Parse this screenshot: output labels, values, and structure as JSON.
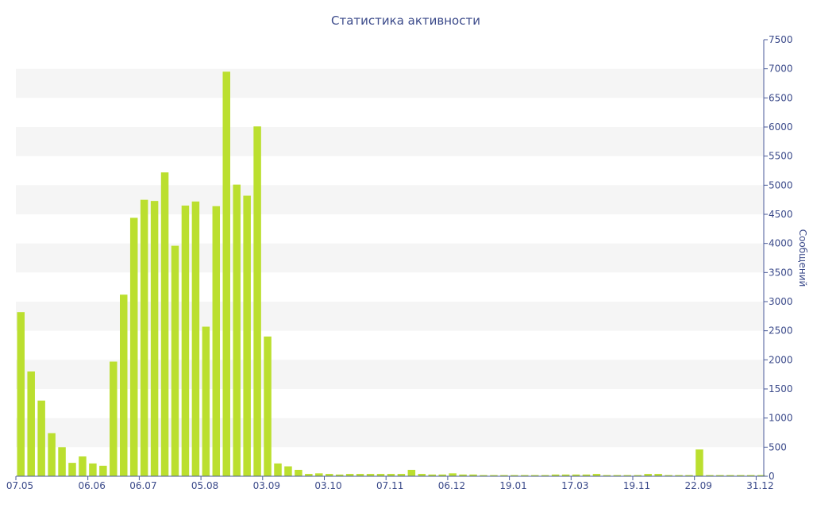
{
  "chart_data": {
    "type": "bar",
    "title": "Статистика активности",
    "xlabel": "",
    "ylabel": "Сообщений",
    "ylim": [
      0,
      7500
    ],
    "y_ticks": [
      0,
      500,
      1000,
      1500,
      2000,
      2500,
      3000,
      3500,
      4000,
      4500,
      5000,
      5500,
      6000,
      6500,
      7000,
      7500
    ],
    "y_axis_side": "right",
    "grid": "alternating horizontal bands",
    "legend": "none",
    "bar_color": "#bbdf2f",
    "band_color": "#f5f5f5",
    "text_color": "#3b4a8a",
    "axis_color": "#4a5a9a",
    "x_tick_labels": [
      {
        "index": 0,
        "label": "07.05"
      },
      {
        "index": 7,
        "label": "06.06"
      },
      {
        "index": 12,
        "label": "06.07"
      },
      {
        "index": 18,
        "label": "05.08"
      },
      {
        "index": 24,
        "label": "03.09"
      },
      {
        "index": 30,
        "label": "03.10"
      },
      {
        "index": 36,
        "label": "07.11"
      },
      {
        "index": 42,
        "label": "06.12"
      },
      {
        "index": 48,
        "label": "19.01"
      },
      {
        "index": 54,
        "label": "17.03"
      },
      {
        "index": 60,
        "label": "19.11"
      },
      {
        "index": 66,
        "label": "22.09"
      },
      {
        "index": 72,
        "label": "31.12"
      }
    ],
    "values": [
      2820,
      1800,
      1300,
      740,
      500,
      230,
      340,
      220,
      180,
      1970,
      3120,
      4440,
      4750,
      4730,
      5220,
      3960,
      4650,
      4720,
      2570,
      4640,
      6950,
      5010,
      4820,
      6010,
      2400,
      220,
      170,
      110,
      40,
      50,
      40,
      30,
      40,
      40,
      40,
      40,
      40,
      40,
      110,
      40,
      30,
      30,
      50,
      30,
      30,
      20,
      20,
      20,
      20,
      20,
      20,
      20,
      30,
      30,
      30,
      30,
      40,
      20,
      20,
      20,
      20,
      40,
      40,
      20,
      20,
      20,
      460,
      20,
      20,
      20,
      20,
      20,
      20
    ]
  }
}
